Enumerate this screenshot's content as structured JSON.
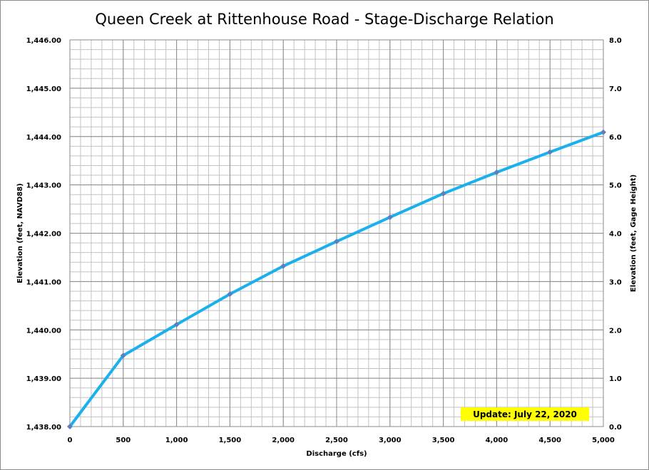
{
  "chart_data": {
    "type": "line",
    "title": "Queen Creek at Rittenhouse Road - Stage-Discharge Relation",
    "xlabel": "Discharge (cfs)",
    "ylabel": "Elevation (feet, NAVD88)",
    "y2label": "Elevation (feet, Gage Height)",
    "xlim": [
      0,
      5000
    ],
    "ylim": [
      1438.0,
      1446.0
    ],
    "y2lim": [
      0.0,
      8.0
    ],
    "x_ticks": [
      0,
      500,
      1000,
      1500,
      2000,
      2500,
      3000,
      3500,
      4000,
      4500,
      5000
    ],
    "x_tick_labels": [
      "0",
      "500",
      "1,000",
      "1,500",
      "2,000",
      "2,500",
      "3,000",
      "3,500",
      "4,000",
      "4,500",
      "5,000"
    ],
    "y_ticks": [
      1438,
      1439,
      1440,
      1441,
      1442,
      1443,
      1444,
      1445,
      1446
    ],
    "y_tick_labels": [
      "1,438.00",
      "1,439.00",
      "1,440.00",
      "1,441.00",
      "1,442.00",
      "1,443.00",
      "1,444.00",
      "1,445.00",
      "1,446.00"
    ],
    "y2_ticks": [
      0,
      1,
      2,
      3,
      4,
      5,
      6,
      7,
      8
    ],
    "y2_tick_labels": [
      "0.0",
      "1.0",
      "2.0",
      "3.0",
      "4.0",
      "5.0",
      "6.0",
      "7.0",
      "8.0"
    ],
    "grid": true,
    "series": [
      {
        "x": [
          0,
          500,
          1000,
          1500,
          2000,
          2500,
          3000,
          3500,
          4000,
          4500,
          5000
        ],
        "y": [
          1438.0,
          1439.47,
          1440.11,
          1440.74,
          1441.32,
          1441.83,
          1442.33,
          1442.82,
          1443.26,
          1443.68,
          1444.09
        ],
        "line_color": "#1ab0ec",
        "marker_color": "#5b7fbf"
      }
    ],
    "annotation": {
      "text": "Update: July 22, 2020",
      "background": "#ffff00"
    }
  }
}
